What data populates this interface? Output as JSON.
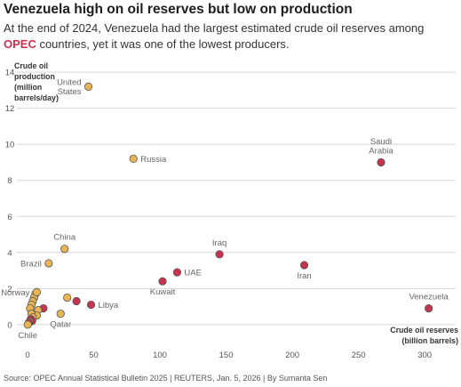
{
  "header": {
    "title": "Venezuela high on oil reserves but low on production",
    "subtitle_before": "At the end of 2024, Venezuela had the largest estimated crude oil reserves among ",
    "subtitle_highlight": "OPEC",
    "subtitle_after": " countries, yet it was one of the lowest producers."
  },
  "footer": {
    "source": "Source: OPEC Annual Statistical Bulletin 2025 | REUTERS, Jan. 5, 2026 | By Sumanta Sen"
  },
  "colors": {
    "opec": "#c8334f",
    "non_opec": "#e8b455",
    "highlight_text": "#c8334f",
    "grid": "#d6d6d6",
    "point_stroke": "#555555"
  },
  "chart_data": {
    "type": "scatter",
    "title": "",
    "xlabel_lines": [
      "Crude oil reserves",
      "(billion barrels)"
    ],
    "ylabel_lines": [
      "Crude oil",
      "production",
      "(million",
      "barrels/day)"
    ],
    "xlim": [
      -4,
      318
    ],
    "ylim": [
      -0.6,
      14.6
    ],
    "xticks": [
      0,
      50,
      100,
      150,
      200,
      250,
      300
    ],
    "yticks": [
      0,
      2,
      4,
      6,
      8,
      10,
      12,
      14
    ],
    "grid": "horizontal",
    "labeled_points": [
      {
        "label": "United States",
        "label_lines": [
          "United",
          "States"
        ],
        "x": 46,
        "y": 13.2,
        "group": "non_opec",
        "label_pos": "left"
      },
      {
        "label": "Russia",
        "x": 80,
        "y": 9.2,
        "group": "non_opec",
        "label_pos": "right"
      },
      {
        "label": "Saudi Arabia",
        "label_lines": [
          "Saudi",
          "Arabia"
        ],
        "x": 267,
        "y": 9.0,
        "group": "opec",
        "label_pos": "above"
      },
      {
        "label": "China",
        "x": 28,
        "y": 4.2,
        "group": "non_opec",
        "label_pos": "above"
      },
      {
        "label": "Iraq",
        "x": 145,
        "y": 3.9,
        "group": "opec",
        "label_pos": "above"
      },
      {
        "label": "Brazil",
        "x": 16,
        "y": 3.4,
        "group": "non_opec",
        "label_pos": "left"
      },
      {
        "label": "Iran",
        "x": 209,
        "y": 3.3,
        "group": "opec",
        "label_pos": "below"
      },
      {
        "label": "UAE",
        "x": 113,
        "y": 2.9,
        "group": "opec",
        "label_pos": "right"
      },
      {
        "label": "Kuwait",
        "x": 102,
        "y": 2.4,
        "group": "opec",
        "label_pos": "below"
      },
      {
        "label": "Norway",
        "x": 7,
        "y": 1.8,
        "group": "non_opec",
        "label_pos": "left"
      },
      {
        "label": "Libya",
        "x": 48,
        "y": 1.1,
        "group": "opec",
        "label_pos": "right"
      },
      {
        "label": "Venezuela",
        "x": 303,
        "y": 0.9,
        "group": "opec",
        "label_pos": "above"
      },
      {
        "label": "Qatar",
        "x": 25,
        "y": 0.6,
        "group": "non_opec",
        "label_pos": "below"
      },
      {
        "label": "Chile",
        "x": 0.2,
        "y": 0.0,
        "group": "non_opec",
        "label_pos": "below"
      }
    ],
    "unlabeled_points": [
      {
        "x": 30,
        "y": 1.5,
        "group": "non_opec"
      },
      {
        "x": 37,
        "y": 1.3,
        "group": "opec"
      },
      {
        "x": 6,
        "y": 1.7,
        "group": "non_opec"
      },
      {
        "x": 5,
        "y": 1.5,
        "group": "non_opec"
      },
      {
        "x": 4,
        "y": 1.3,
        "group": "non_opec"
      },
      {
        "x": 3,
        "y": 1.1,
        "group": "non_opec"
      },
      {
        "x": 12,
        "y": 0.9,
        "group": "opec"
      },
      {
        "x": 2,
        "y": 0.9,
        "group": "non_opec"
      },
      {
        "x": 8,
        "y": 0.8,
        "group": "non_opec"
      },
      {
        "x": 7,
        "y": 0.5,
        "group": "non_opec"
      },
      {
        "x": 3,
        "y": 0.6,
        "group": "non_opec"
      },
      {
        "x": 4,
        "y": 0.4,
        "group": "non_opec"
      },
      {
        "x": 2.5,
        "y": 0.3,
        "group": "opec"
      },
      {
        "x": 3.5,
        "y": 0.2,
        "group": "opec"
      },
      {
        "x": 1.5,
        "y": 0.15,
        "group": "non_opec"
      },
      {
        "x": 1,
        "y": 0.1,
        "group": "opec"
      }
    ]
  }
}
